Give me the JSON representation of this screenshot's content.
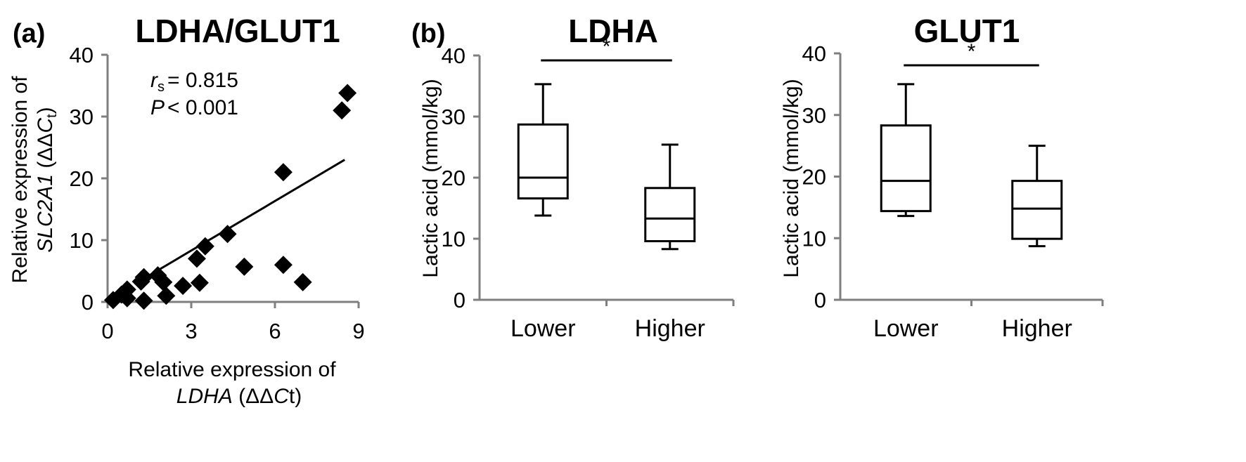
{
  "panels": {
    "a": {
      "label": "(a)",
      "title": "LDHA/GLUT1",
      "stats": {
        "r_var": "r",
        "r_sub": "s",
        "r_value": "= 0.815",
        "p_var": "P",
        "p_value": "< 0.001"
      },
      "xlabel": {
        "line1": "Relative expression of",
        "gene": "LDHA",
        "unit_pre": " (ΔΔ",
        "unit_var": "C",
        "unit_post": "t)"
      },
      "ylabel": {
        "line1": "Relative expression of",
        "gene": "SLC2A1",
        "unit_pre": " (ΔΔ",
        "unit_var": "C",
        "unit_sub": "t",
        "unit_post": ")"
      }
    },
    "b": {
      "label": "(b)"
    }
  },
  "chart_data": [
    {
      "type": "scatter",
      "title": "LDHA/GLUT1",
      "xlabel": "Relative expression of LDHA (ΔΔCt)",
      "ylabel": "Relative expression of SLC2A1 (ΔΔCt)",
      "xlim": [
        0,
        9
      ],
      "ylim": [
        0,
        40
      ],
      "xticks": [
        0,
        3,
        6,
        9
      ],
      "yticks": [
        0,
        10,
        20,
        30,
        40
      ],
      "points": [
        {
          "x": 0.2,
          "y": 0.3
        },
        {
          "x": 0.5,
          "y": 1.2
        },
        {
          "x": 0.7,
          "y": 2.0
        },
        {
          "x": 0.7,
          "y": 0.6
        },
        {
          "x": 1.2,
          "y": 3.3
        },
        {
          "x": 1.3,
          "y": 0.2
        },
        {
          "x": 1.3,
          "y": 4.0
        },
        {
          "x": 1.8,
          "y": 4.3
        },
        {
          "x": 2.0,
          "y": 3.2
        },
        {
          "x": 2.1,
          "y": 1.0
        },
        {
          "x": 2.7,
          "y": 2.6
        },
        {
          "x": 3.2,
          "y": 7.0
        },
        {
          "x": 3.3,
          "y": 3.1
        },
        {
          "x": 3.5,
          "y": 9.0
        },
        {
          "x": 4.3,
          "y": 11.0
        },
        {
          "x": 4.9,
          "y": 5.7
        },
        {
          "x": 6.3,
          "y": 21.0
        },
        {
          "x": 6.3,
          "y": 6.0
        },
        {
          "x": 7.0,
          "y": 3.2
        },
        {
          "x": 8.4,
          "y": 31.0
        },
        {
          "x": 8.6,
          "y": 33.8
        }
      ],
      "fit_line": {
        "x": [
          1.2,
          8.5
        ],
        "y": [
          3.5,
          23.0
        ]
      },
      "annotations": [
        "rs = 0.815",
        "P < 0.001"
      ]
    },
    {
      "type": "box",
      "title": "LDHA",
      "ylabel": "Lactic acid (mmol/kg)",
      "ylim": [
        0,
        40
      ],
      "yticks": [
        0,
        10,
        20,
        30,
        40
      ],
      "categories": [
        "Lower",
        "Higher"
      ],
      "boxes": [
        {
          "min": 13.8,
          "q1": 16.6,
          "median": 20.0,
          "q3": 28.7,
          "max": 35.3
        },
        {
          "min": 8.3,
          "q1": 9.6,
          "median": 13.3,
          "q3": 18.3,
          "max": 25.4
        }
      ],
      "significance": "*"
    },
    {
      "type": "box",
      "title": "GLUT1",
      "ylabel": "Lactic acid (mmol/kg)",
      "ylim": [
        0,
        40
      ],
      "yticks": [
        0,
        10,
        20,
        30,
        40
      ],
      "categories": [
        "Lower",
        "Higher"
      ],
      "boxes": [
        {
          "min": 13.6,
          "q1": 14.4,
          "median": 19.3,
          "q3": 28.3,
          "max": 35.0
        },
        {
          "min": 8.7,
          "q1": 9.9,
          "median": 14.8,
          "q3": 19.3,
          "max": 25.0
        }
      ],
      "significance": "*"
    }
  ]
}
